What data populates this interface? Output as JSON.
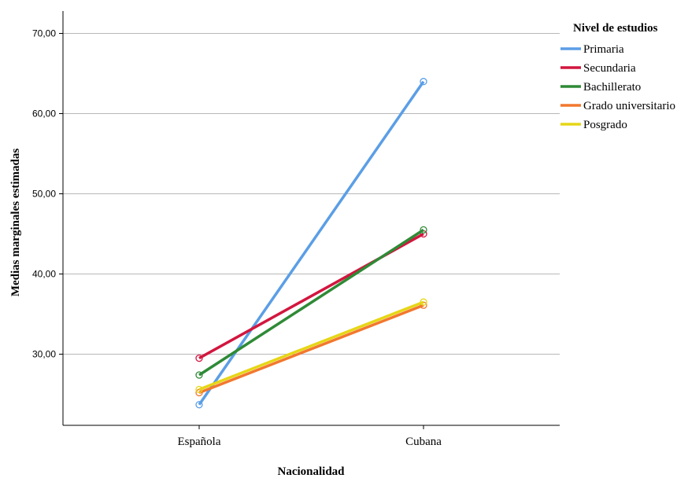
{
  "chart_data": {
    "type": "line",
    "categories": [
      "Española",
      "Cubana"
    ],
    "xlabel": "Nacionalidad",
    "ylabel": "Medias marginales estimadas",
    "ylim": [
      21,
      73
    ],
    "yticks": [
      30,
      40,
      50,
      60,
      70
    ],
    "ytick_labels": [
      "30,00",
      "40,00",
      "50,00",
      "60,00",
      "70,00"
    ],
    "grid": "horizontal",
    "legend_title": "Nivel de estudios",
    "legend_position": "top-right",
    "series": [
      {
        "name": "Primaria",
        "color": "#5b9ee6",
        "values": [
          23.7,
          64.0
        ]
      },
      {
        "name": "Secundaria",
        "color": "#d2163e",
        "values": [
          29.5,
          45.0
        ]
      },
      {
        "name": "Bachillerato",
        "color": "#2f8a36",
        "values": [
          27.4,
          45.5
        ]
      },
      {
        "name": "Grado universitario",
        "color": "#f2782e",
        "values": [
          25.2,
          36.1
        ]
      },
      {
        "name": "Posgrado",
        "color": "#e6d616",
        "values": [
          25.6,
          36.5
        ]
      }
    ]
  }
}
